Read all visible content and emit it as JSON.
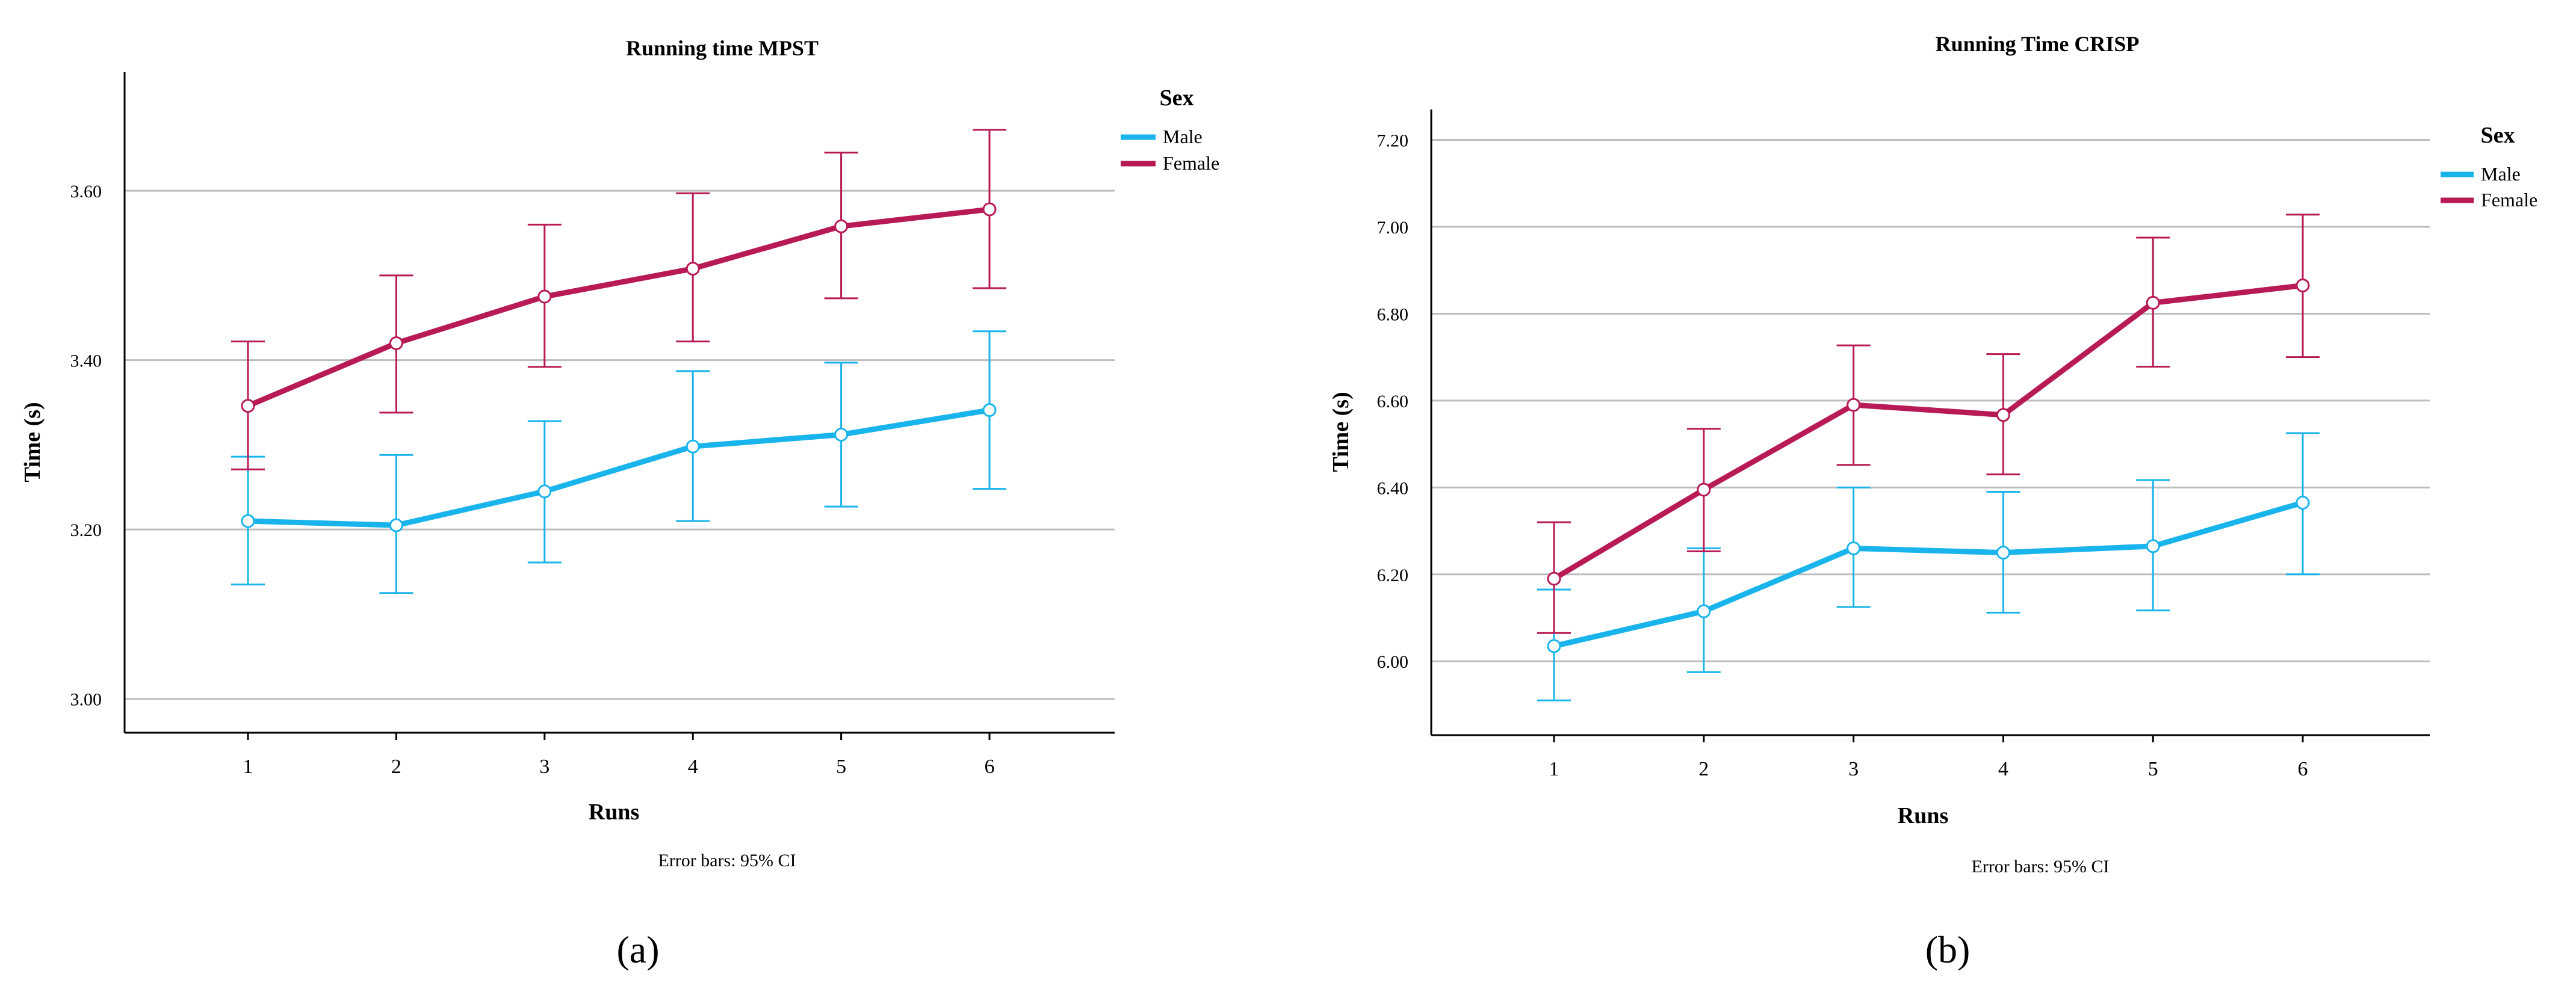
{
  "chart_data": [
    {
      "type": "line",
      "panel_label": "(a)",
      "title": "Running time MPST",
      "xlabel": "Runs",
      "ylabel": "Time (s)",
      "categories": [
        "1",
        "2",
        "3",
        "4",
        "5",
        "6"
      ],
      "ylim": [
        2.96,
        3.74
      ],
      "yticks": [
        3.0,
        3.2,
        3.4,
        3.6
      ],
      "ytick_labels": [
        "3.00",
        "3.20",
        "3.40",
        "3.60"
      ],
      "grid": true,
      "legend": {
        "title": "Sex",
        "position": "top-right"
      },
      "footnote": "Error bars: 95% CI",
      "series": [
        {
          "name": "Male",
          "color": "#1ab4ec",
          "values": [
            3.21,
            3.205,
            3.245,
            3.298,
            3.312,
            3.341
          ],
          "ci_low": [
            3.135,
            3.125,
            3.161,
            3.21,
            3.227,
            3.248
          ],
          "ci_high": [
            3.286,
            3.288,
            3.328,
            3.387,
            3.397,
            3.434
          ]
        },
        {
          "name": "Female",
          "color": "#b81a55",
          "values": [
            3.346,
            3.42,
            3.475,
            3.508,
            3.558,
            3.578
          ],
          "ci_low": [
            3.271,
            3.338,
            3.392,
            3.422,
            3.473,
            3.485
          ],
          "ci_high": [
            3.422,
            3.5,
            3.56,
            3.597,
            3.645,
            3.672
          ]
        }
      ]
    },
    {
      "type": "line",
      "panel_label": "(b)",
      "title": "Running Time CRISP",
      "xlabel": "Runs",
      "ylabel": "Time (s)",
      "categories": [
        "1",
        "2",
        "3",
        "4",
        "5",
        "6"
      ],
      "ylim": [
        5.83,
        7.27
      ],
      "yticks": [
        6.0,
        6.2,
        6.4,
        6.6,
        6.8,
        7.0,
        7.2
      ],
      "ytick_labels": [
        "6.00",
        "6.20",
        "6.40",
        "6.60",
        "6.80",
        "7.00",
        "7.20"
      ],
      "grid": true,
      "legend": {
        "title": "Sex",
        "position": "top-right"
      },
      "footnote": "Error bars: 95% CI",
      "series": [
        {
          "name": "Male",
          "color": "#1ab4ec",
          "values": [
            6.035,
            6.115,
            6.26,
            6.25,
            6.265,
            6.365
          ],
          "ci_low": [
            5.91,
            5.975,
            6.125,
            6.112,
            6.117,
            6.2
          ],
          "ci_high": [
            6.165,
            6.26,
            6.4,
            6.39,
            6.417,
            6.525
          ]
        },
        {
          "name": "Female",
          "color": "#b81a55",
          "values": [
            6.19,
            6.395,
            6.59,
            6.567,
            6.825,
            6.865
          ],
          "ci_low": [
            6.065,
            6.253,
            6.452,
            6.43,
            6.678,
            6.7
          ],
          "ci_high": [
            6.32,
            6.535,
            6.727,
            6.707,
            6.975,
            7.028
          ]
        }
      ]
    }
  ]
}
